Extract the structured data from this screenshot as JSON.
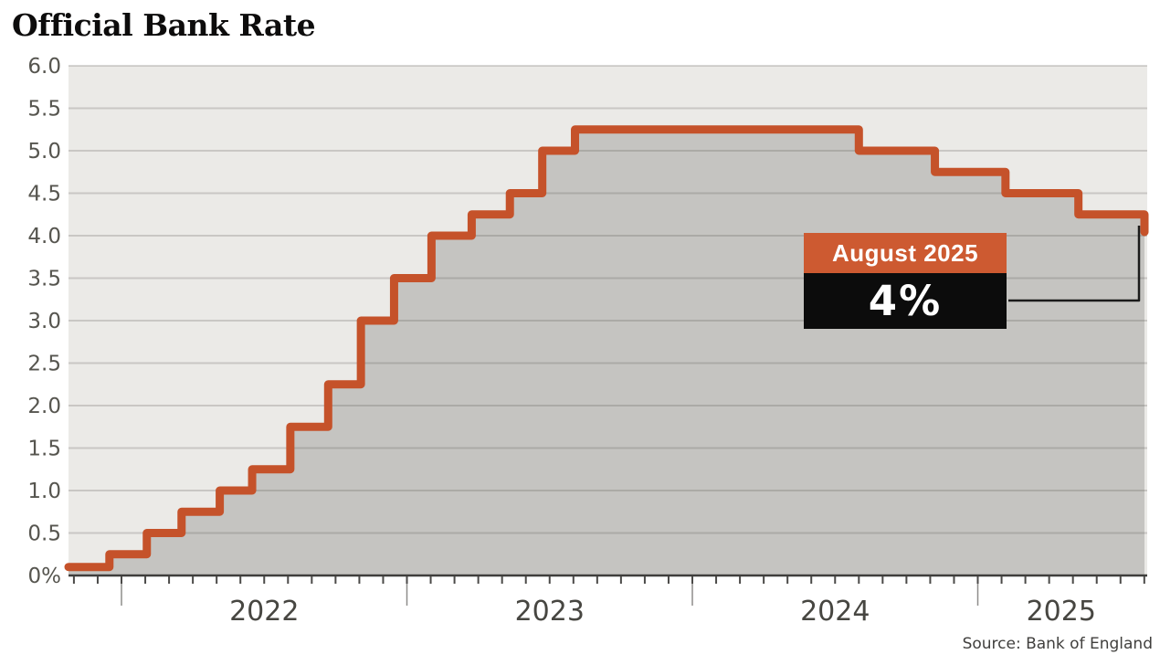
{
  "chart_data": {
    "type": "area-step",
    "title": "Official Bank Rate",
    "source": "Source: Bank of England",
    "unit": "percent",
    "ylim": [
      0,
      6
    ],
    "ytick_step": 0.5,
    "ytick_labels": [
      "0%",
      "0.5",
      "1.0",
      "1.5",
      "2.0",
      "2.5",
      "3.0",
      "3.5",
      "4.0",
      "4.5",
      "5.0",
      "5.5",
      "6.0"
    ],
    "xtick_years": [
      "2022",
      "2023",
      "2024",
      "2025"
    ],
    "x_range": [
      "2021-10-25",
      "2025-08-10"
    ],
    "start": {
      "date": "2021-10-25",
      "rate": 0.1
    },
    "rate_changes": [
      {
        "date": "2021-12-16",
        "rate": 0.25
      },
      {
        "date": "2022-02-03",
        "rate": 0.5
      },
      {
        "date": "2022-03-17",
        "rate": 0.75
      },
      {
        "date": "2022-05-05",
        "rate": 1.0
      },
      {
        "date": "2022-06-16",
        "rate": 1.25
      },
      {
        "date": "2022-08-04",
        "rate": 1.75
      },
      {
        "date": "2022-09-22",
        "rate": 2.25
      },
      {
        "date": "2022-11-03",
        "rate": 3.0
      },
      {
        "date": "2022-12-15",
        "rate": 3.5
      },
      {
        "date": "2023-02-02",
        "rate": 4.0
      },
      {
        "date": "2023-03-23",
        "rate": 4.25
      },
      {
        "date": "2023-05-11",
        "rate": 4.5
      },
      {
        "date": "2023-06-22",
        "rate": 5.0
      },
      {
        "date": "2023-08-03",
        "rate": 5.25
      },
      {
        "date": "2024-08-01",
        "rate": 5.0
      },
      {
        "date": "2024-11-07",
        "rate": 4.75
      },
      {
        "date": "2025-02-06",
        "rate": 4.5
      },
      {
        "date": "2025-05-08",
        "rate": 4.25
      },
      {
        "date": "2025-08-07",
        "rate": 4.0
      }
    ],
    "highlight": {
      "label": "August 2025",
      "value": "4%",
      "rate": 4.0
    },
    "grid": true,
    "legend": false,
    "colors": {
      "line": "#c5522a",
      "annotation_box": "#cd5a31",
      "value_box": "#0c0c0c",
      "area_fill": "#c5c4c1",
      "plot_bg": "#ebeae7",
      "grid_line": "rgba(80,78,75,0.22)",
      "axis_line": "#3f3e3c",
      "connector": "#1b1b1b"
    }
  }
}
